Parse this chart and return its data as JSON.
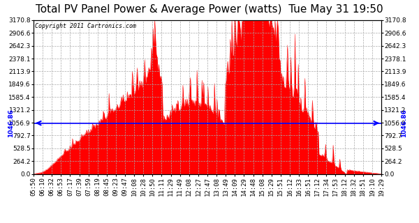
{
  "title": "Total PV Panel Power & Average Power (watts)  Tue May 31 19:50",
  "copyright_text": "Copyright 2011 Cartronics.com",
  "average_line_value": 1046.86,
  "y_max": 3170.8,
  "y_min": 0.0,
  "y_ticks": [
    0.0,
    264.2,
    528.5,
    792.7,
    1056.9,
    1321.2,
    1585.4,
    1849.6,
    2113.9,
    2378.1,
    2642.3,
    2906.6,
    3170.8
  ],
  "x_tick_labels": [
    "05:50",
    "06:10",
    "06:32",
    "06:53",
    "07:17",
    "07:39",
    "07:59",
    "08:19",
    "08:45",
    "09:23",
    "09:47",
    "10:08",
    "10:28",
    "10:50",
    "11:11",
    "11:29",
    "11:49",
    "12:08",
    "12:27",
    "12:47",
    "13:08",
    "13:49",
    "14:09",
    "14:29",
    "14:48",
    "15:08",
    "15:29",
    "15:51",
    "16:12",
    "16:33",
    "16:51",
    "17:12",
    "17:34",
    "17:53",
    "18:12",
    "18:32",
    "18:51",
    "19:10",
    "19:29"
  ],
  "fill_color": "#FF0000",
  "line_color": "#FF0000",
  "avg_line_color": "#0000FF",
  "background_color": "#FFFFFF",
  "grid_color": "#AAAAAA",
  "border_color": "#000000",
  "title_fontsize": 11,
  "tick_fontsize": 6.5,
  "copyright_fontsize": 6
}
